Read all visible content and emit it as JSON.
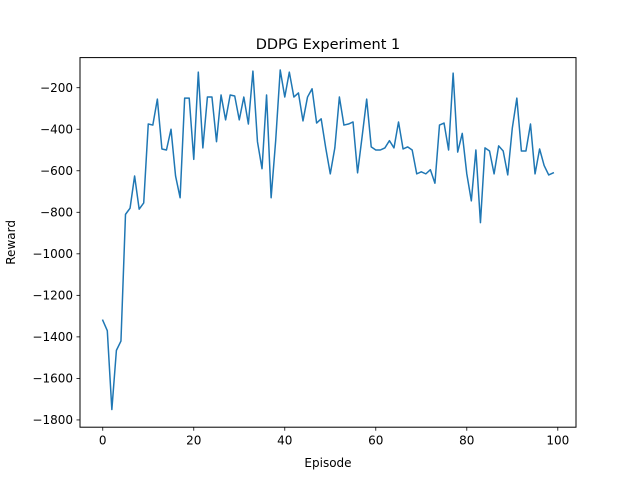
{
  "chart_data": {
    "type": "line",
    "title": "DDPG Experiment 1",
    "xlabel": "Episode",
    "ylabel": "Reward",
    "xlim": [
      -5,
      104
    ],
    "ylim": [
      -1835,
      -55
    ],
    "x_ticks": [
      0,
      20,
      40,
      60,
      80,
      100
    ],
    "x_tick_labels": [
      "0",
      "20",
      "40",
      "60",
      "80",
      "100"
    ],
    "y_ticks": [
      -1800,
      -1600,
      -1400,
      -1200,
      -1000,
      -800,
      -600,
      -400,
      -200
    ],
    "y_tick_labels": [
      "−1800",
      "−1600",
      "−1400",
      "−1200",
      "−1000",
      "−800",
      "−600",
      "−400",
      "−200"
    ],
    "grid": false,
    "colors": {
      "line": "#1f77b4",
      "axes": "#000000",
      "background": "#ffffff"
    },
    "series": [
      {
        "name": "Reward",
        "x": [
          0,
          1,
          2,
          3,
          4,
          5,
          6,
          7,
          8,
          9,
          10,
          11,
          12,
          13,
          14,
          15,
          16,
          17,
          18,
          19,
          20,
          21,
          22,
          23,
          24,
          25,
          26,
          27,
          28,
          29,
          30,
          31,
          32,
          33,
          34,
          35,
          36,
          37,
          38,
          39,
          40,
          41,
          42,
          43,
          44,
          45,
          46,
          47,
          48,
          49,
          50,
          51,
          52,
          53,
          54,
          55,
          56,
          57,
          58,
          59,
          60,
          61,
          62,
          63,
          64,
          65,
          66,
          67,
          68,
          69,
          70,
          71,
          72,
          73,
          74,
          75,
          76,
          77,
          78,
          79,
          80,
          81,
          82,
          83,
          84,
          85,
          86,
          87,
          88,
          89,
          90,
          91,
          92,
          93,
          94,
          95,
          96,
          97,
          98,
          99
        ],
        "values": [
          -1320,
          -1370,
          -1750,
          -1465,
          -1420,
          -810,
          -780,
          -625,
          -785,
          -755,
          -375,
          -380,
          -255,
          -495,
          -500,
          -400,
          -625,
          -730,
          -250,
          -250,
          -545,
          -125,
          -490,
          -245,
          -245,
          -460,
          -235,
          -355,
          -235,
          -240,
          -355,
          -245,
          -375,
          -120,
          -460,
          -590,
          -235,
          -730,
          -455,
          -115,
          -245,
          -125,
          -245,
          -225,
          -360,
          -245,
          -205,
          -370,
          -350,
          -490,
          -615,
          -490,
          -245,
          -380,
          -375,
          -365,
          -610,
          -435,
          -255,
          -485,
          -500,
          -500,
          -490,
          -455,
          -490,
          -365,
          -495,
          -485,
          -500,
          -615,
          -605,
          -615,
          -595,
          -660,
          -380,
          -370,
          -500,
          -130,
          -510,
          -420,
          -615,
          -745,
          -500,
          -850,
          -490,
          -505,
          -615,
          -480,
          -505,
          -620,
          -395,
          -250,
          -505,
          -505,
          -375,
          -615,
          -495,
          -575,
          -620,
          -610
        ]
      }
    ]
  }
}
